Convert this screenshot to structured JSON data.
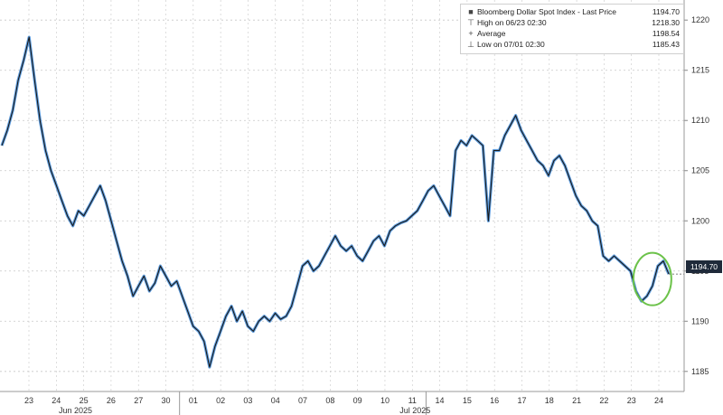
{
  "legend": {
    "items": [
      {
        "label": "Bloomberg Dollar Spot Index - Last Price",
        "value": "1194.70",
        "symbol": "■"
      },
      {
        "label": "High on 06/23 02:30",
        "value": "1218.30",
        "symbol": "⊤"
      },
      {
        "label": "Average",
        "value": "1198.54",
        "symbol": "+"
      },
      {
        "label": "Low on 07/01 02:30",
        "value": "1185.43",
        "symbol": "⊥"
      }
    ]
  },
  "last_price_tag": "1194.70",
  "colors": {
    "line": "#1a1a1a",
    "line_shadow": "#4a90d9",
    "grid": "#c8c8c8",
    "highlight_circle": "#6cc24a",
    "price_tag_bg": "#1f2a3a"
  },
  "chart_data": {
    "type": "line",
    "title": "",
    "xlabel": "",
    "ylabel": "",
    "ylim": [
      1183,
      1222
    ],
    "yticks": [
      1185,
      1190,
      1195,
      1200,
      1205,
      1210,
      1215,
      1220
    ],
    "grid": true,
    "legend_placement": "top-right",
    "x_day_labels": [
      "23",
      "24",
      "25",
      "26",
      "27",
      "30",
      "01",
      "02",
      "03",
      "04",
      "07",
      "08",
      "09",
      "10",
      "11",
      "14",
      "15",
      "16",
      "17",
      "18",
      "21",
      "22",
      "23",
      "24"
    ],
    "x_month_labels": [
      "Jun 2025",
      "Jul 2025"
    ],
    "annotation": "green circle around last price at right end",
    "series": [
      {
        "values": [
          1207.5,
          1209,
          1211,
          1214,
          1216,
          1218.3,
          1214,
          1210,
          1207,
          1205,
          1203.5,
          1202,
          1200.5,
          1199.5,
          1201,
          1200.5,
          1201.5,
          1202.5,
          1203.5,
          1202,
          1200,
          1198,
          1196,
          1194.5,
          1192.5,
          1193.5,
          1194.5,
          1193,
          1193.8,
          1195.5,
          1194.5,
          1193.5,
          1194,
          1192.5,
          1191,
          1189.5,
          1189,
          1188,
          1185.43,
          1187.5,
          1189,
          1190.5,
          1191.5,
          1190,
          1191,
          1189.5,
          1189,
          1190,
          1190.5,
          1190,
          1190.8,
          1190.2,
          1190.5,
          1191.5,
          1193.5,
          1195.5,
          1196,
          1195,
          1195.5,
          1196.5,
          1197.5,
          1198.5,
          1197.5,
          1197,
          1197.5,
          1196.5,
          1196,
          1197,
          1198,
          1198.5,
          1197.5,
          1199,
          1199.5,
          1199.8,
          1200,
          1200.5,
          1201,
          1202,
          1203,
          1203.5,
          1202.5,
          1201.5,
          1200.5,
          1207,
          1208,
          1207.5,
          1208.5,
          1208,
          1207.5,
          1200,
          1207,
          1207,
          1208.5,
          1209.5,
          1210.5,
          1209,
          1208,
          1207,
          1206,
          1205.5,
          1204.5,
          1206,
          1206.5,
          1205.5,
          1204,
          1202.5,
          1201.5,
          1201,
          1200,
          1199.5,
          1196.5,
          1196,
          1196.5,
          1196,
          1195.5,
          1195,
          1193,
          1192,
          1192.5,
          1193.5,
          1195.5,
          1196,
          1194.7
        ]
      }
    ]
  }
}
